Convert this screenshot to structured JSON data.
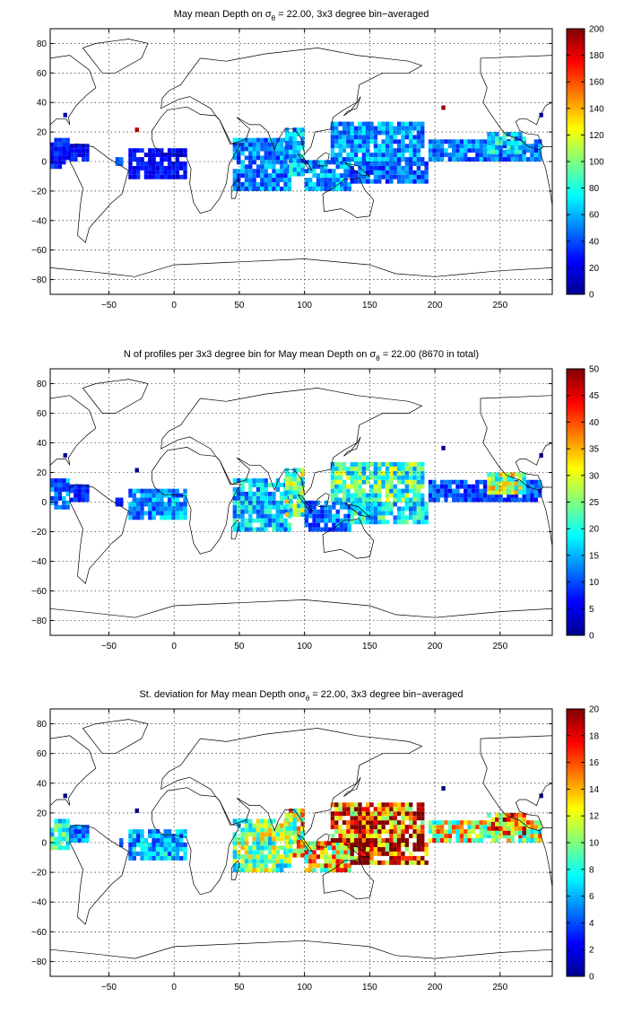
{
  "chart_data": [
    {
      "type": "heatmap",
      "title_parts": {
        "pre": "May mean Depth on ",
        "sym": "σ",
        "sub": "θ",
        "post": " = 22.00, 3x3 degree bin−averaged"
      },
      "xlim": [
        -95,
        290
      ],
      "ylim": [
        -90,
        90
      ],
      "x_ticks": [
        -50,
        0,
        50,
        100,
        150,
        200,
        250
      ],
      "y_ticks": [
        -80,
        -60,
        -40,
        -20,
        0,
        20,
        40,
        60,
        80
      ],
      "grid": true,
      "colorbar": {
        "min": 0,
        "max": 200,
        "ticks": [
          0,
          20,
          40,
          60,
          80,
          100,
          120,
          140,
          160,
          180,
          200
        ]
      },
      "regions": [
        {
          "x": [
            -95,
            -80
          ],
          "y": [
            -5,
            15
          ],
          "value": 30
        },
        {
          "x": [
            -80,
            -65
          ],
          "y": [
            0,
            10
          ],
          "value": 25
        },
        {
          "x": [
            -45,
            -40
          ],
          "y": [
            -3,
            3
          ],
          "value": 40
        },
        {
          "x": [
            -35,
            10
          ],
          "y": [
            -12,
            7
          ],
          "value": 25
        },
        {
          "x": [
            45,
            90
          ],
          "y": [
            -20,
            15
          ],
          "value": 50
        },
        {
          "x": [
            85,
            100
          ],
          "y": [
            -10,
            22
          ],
          "value": 60
        },
        {
          "x": [
            100,
            135
          ],
          "y": [
            -20,
            0
          ],
          "value": 55
        },
        {
          "x": [
            120,
            190
          ],
          "y": [
            0,
            25
          ],
          "value": 55
        },
        {
          "x": [
            135,
            195
          ],
          "y": [
            -15,
            0
          ],
          "value": 45
        },
        {
          "x": [
            195,
            280
          ],
          "y": [
            0,
            15
          ],
          "value": 50
        },
        {
          "x": [
            240,
            270
          ],
          "y": [
            5,
            18
          ],
          "value": 65
        }
      ],
      "points": [
        {
          "x": -30,
          "y": 20,
          "value": 190
        },
        {
          "x": 205,
          "y": 35,
          "value": 195
        },
        {
          "x": -85,
          "y": 30,
          "value": 10
        },
        {
          "x": 280,
          "y": 30,
          "value": 10
        }
      ]
    },
    {
      "type": "heatmap",
      "title_parts": {
        "pre": "N of profiles per 3x3 degree bin for May mean Depth on ",
        "sym": "σ",
        "sub": "θ",
        "post": " = 22.00 (8670 in total)"
      },
      "xlim": [
        -95,
        290
      ],
      "ylim": [
        -90,
        90
      ],
      "x_ticks": [
        -50,
        0,
        50,
        100,
        150,
        200,
        250
      ],
      "y_ticks": [
        -80,
        -60,
        -40,
        -20,
        0,
        20,
        40,
        60,
        80
      ],
      "grid": true,
      "colorbar": {
        "min": 0,
        "max": 50,
        "ticks": [
          0,
          5,
          10,
          15,
          20,
          25,
          30,
          35,
          40,
          45,
          50
        ]
      },
      "regions": [
        {
          "x": [
            -95,
            -80
          ],
          "y": [
            -5,
            15
          ],
          "value": 12
        },
        {
          "x": [
            -80,
            -65
          ],
          "y": [
            0,
            10
          ],
          "value": 8
        },
        {
          "x": [
            -45,
            -40
          ],
          "y": [
            -3,
            3
          ],
          "value": 6
        },
        {
          "x": [
            -35,
            10
          ],
          "y": [
            -12,
            7
          ],
          "value": 14
        },
        {
          "x": [
            45,
            90
          ],
          "y": [
            -20,
            15
          ],
          "value": 16
        },
        {
          "x": [
            85,
            100
          ],
          "y": [
            -10,
            22
          ],
          "value": 24
        },
        {
          "x": [
            100,
            135
          ],
          "y": [
            -20,
            0
          ],
          "value": 12
        },
        {
          "x": [
            120,
            190
          ],
          "y": [
            0,
            25
          ],
          "value": 22
        },
        {
          "x": [
            135,
            195
          ],
          "y": [
            -15,
            0
          ],
          "value": 18
        },
        {
          "x": [
            195,
            280
          ],
          "y": [
            0,
            15
          ],
          "value": 10
        },
        {
          "x": [
            240,
            270
          ],
          "y": [
            5,
            18
          ],
          "value": 26
        }
      ],
      "points": [
        {
          "x": -30,
          "y": 20,
          "value": 1
        },
        {
          "x": 205,
          "y": 35,
          "value": 1
        },
        {
          "x": -85,
          "y": 30,
          "value": 1
        },
        {
          "x": 280,
          "y": 30,
          "value": 1
        }
      ]
    },
    {
      "type": "heatmap",
      "title_parts": {
        "pre": "St. deviation for May mean Depth on",
        "sym": "σ",
        "sub": "θ",
        "post": " = 22.00, 3x3 degree bin−averaged"
      },
      "xlim": [
        -95,
        290
      ],
      "ylim": [
        -90,
        90
      ],
      "x_ticks": [
        -50,
        0,
        50,
        100,
        150,
        200,
        250
      ],
      "y_ticks": [
        -80,
        -60,
        -40,
        -20,
        0,
        20,
        40,
        60,
        80
      ],
      "grid": true,
      "colorbar": {
        "min": 0,
        "max": 20,
        "ticks": [
          0,
          2,
          4,
          6,
          8,
          10,
          12,
          14,
          16,
          18,
          20
        ]
      },
      "regions": [
        {
          "x": [
            -95,
            -80
          ],
          "y": [
            -5,
            15
          ],
          "value": 8
        },
        {
          "x": [
            -80,
            -65
          ],
          "y": [
            0,
            10
          ],
          "value": 5
        },
        {
          "x": [
            -45,
            -40
          ],
          "y": [
            -3,
            3
          ],
          "value": 5
        },
        {
          "x": [
            -35,
            10
          ],
          "y": [
            -12,
            7
          ],
          "value": 6
        },
        {
          "x": [
            45,
            90
          ],
          "y": [
            -20,
            15
          ],
          "value": 10
        },
        {
          "x": [
            85,
            100
          ],
          "y": [
            -10,
            22
          ],
          "value": 12
        },
        {
          "x": [
            100,
            135
          ],
          "y": [
            -20,
            0
          ],
          "value": 13
        },
        {
          "x": [
            120,
            190
          ],
          "y": [
            0,
            25
          ],
          "value": 17
        },
        {
          "x": [
            135,
            195
          ],
          "y": [
            -15,
            0
          ],
          "value": 17
        },
        {
          "x": [
            195,
            280
          ],
          "y": [
            0,
            15
          ],
          "value": 12
        },
        {
          "x": [
            240,
            270
          ],
          "y": [
            5,
            18
          ],
          "value": 14
        }
      ],
      "points": [
        {
          "x": -30,
          "y": 20,
          "value": 0
        },
        {
          "x": 205,
          "y": 35,
          "value": 0
        },
        {
          "x": -85,
          "y": 30,
          "value": 0
        },
        {
          "x": 280,
          "y": 30,
          "value": 0
        }
      ]
    }
  ]
}
